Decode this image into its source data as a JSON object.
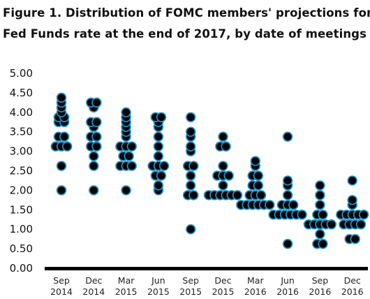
{
  "chart_data": {
    "type": "scatter",
    "title_lines": [
      "Figure 1. Distribution of FOMC members' projections for",
      "Fed Funds rate at the end of 2017, by date of meetings"
    ],
    "xlabel": "",
    "ylabel": "",
    "ylim": [
      0,
      5
    ],
    "yticks": [
      "5.00",
      "4.50",
      "4.00",
      "3.50",
      "3.00",
      "2.50",
      "2.00",
      "1.50",
      "1.00",
      "0.50",
      "0.00"
    ],
    "grid": false,
    "marker_fill": "#000000",
    "marker_edge": "#1f8fc4",
    "categories": [
      {
        "line1": "Sep",
        "line2": "2014",
        "points": [
          4.375,
          4.25,
          4.125,
          4.0,
          3.875,
          3.875,
          3.75,
          3.75,
          3.375,
          3.375,
          3.125,
          3.125,
          3.125,
          2.625,
          2.0
        ]
      },
      {
        "line1": "Dec",
        "line2": "2014",
        "points": [
          4.25,
          4.25,
          4.125,
          3.75,
          3.75,
          3.625,
          3.375,
          3.375,
          3.125,
          3.125,
          2.875,
          2.625,
          2.0
        ]
      },
      {
        "line1": "Mar",
        "line2": "2015",
        "points": [
          4.0,
          3.875,
          3.75,
          3.625,
          3.5,
          3.375,
          3.125,
          3.125,
          3.125,
          2.875,
          2.875,
          2.625,
          2.625,
          2.625,
          2.0
        ]
      },
      {
        "line1": "Jun",
        "line2": "2015",
        "points": [
          3.875,
          3.875,
          3.75,
          3.625,
          3.375,
          3.125,
          2.875,
          2.625,
          2.625,
          2.625,
          2.375,
          2.375,
          2.125,
          2.0
        ]
      },
      {
        "line1": "Sep",
        "line2": "2015",
        "points": [
          3.875,
          3.5,
          3.375,
          3.125,
          3.0,
          2.625,
          2.625,
          2.375,
          2.125,
          1.875,
          1.875,
          1.0
        ]
      },
      {
        "line1": "Dec",
        "line2": "2015",
        "points": [
          3.375,
          3.125,
          3.125,
          2.625,
          2.375,
          2.375,
          2.375,
          2.125,
          1.875,
          1.875,
          1.875,
          1.875,
          1.875,
          1.875
        ]
      },
      {
        "line1": "Mar",
        "line2": "2016",
        "points": [
          2.75,
          2.625,
          2.375,
          2.375,
          2.125,
          2.125,
          1.875,
          1.875,
          1.875,
          1.625,
          1.625,
          1.625,
          1.625,
          1.625,
          1.625
        ]
      },
      {
        "line1": "Jun",
        "line2": "2016",
        "points": [
          3.375,
          2.25,
          2.125,
          1.875,
          1.625,
          1.625,
          1.625,
          1.375,
          1.375,
          1.375,
          1.375,
          1.375,
          1.375,
          0.625
        ]
      },
      {
        "line1": "Sep",
        "line2": "2016",
        "points": [
          2.125,
          1.875,
          1.625,
          1.375,
          1.375,
          1.125,
          1.125,
          1.125,
          1.125,
          1.125,
          0.875,
          0.625,
          0.625
        ]
      },
      {
        "line1": "Dec",
        "line2": "2016",
        "points": [
          2.25,
          1.75,
          1.625,
          1.375,
          1.375,
          1.375,
          1.375,
          1.375,
          1.125,
          1.125,
          1.125,
          1.125,
          0.75,
          0.75
        ]
      }
    ]
  }
}
